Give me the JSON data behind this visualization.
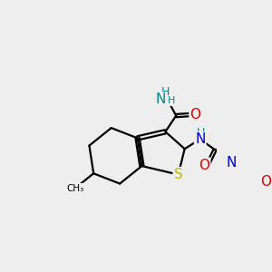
{
  "bg_color": "#eeeeee",
  "atom_colors": {
    "C": "#000000",
    "N": "#0000cc",
    "O": "#dd0000",
    "S": "#bbbb00",
    "H_teal": "#008888"
  },
  "bond_color": "#000000",
  "bond_width": 1.6,
  "figsize": [
    3.0,
    3.0
  ],
  "dpi": 100,
  "xlim": [
    0,
    10
  ],
  "ylim": [
    0,
    10
  ]
}
